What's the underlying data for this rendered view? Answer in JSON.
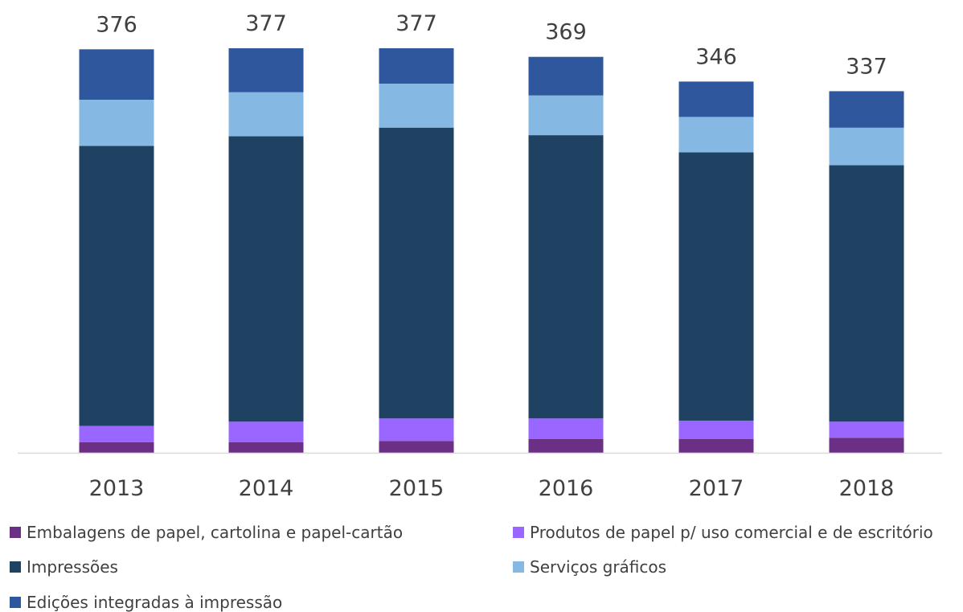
{
  "chart_data": {
    "type": "bar",
    "stacked": true,
    "categories": [
      "2013",
      "2014",
      "2015",
      "2016",
      "2017",
      "2018"
    ],
    "totals": [
      376,
      377,
      377,
      369,
      346,
      337
    ],
    "series": [
      {
        "name": "Embalagens de papel, cartolina e papel-cartão",
        "color": "#6B2F86",
        "values": [
          10,
          10,
          11,
          13,
          13,
          14
        ]
      },
      {
        "name": "Produtos de papel p/ uso comercial e de escritório",
        "color": "#9966FF",
        "values": [
          15,
          19,
          21,
          19,
          17,
          15
        ]
      },
      {
        "name": "Impressões",
        "color": "#1F4263",
        "values": [
          261,
          266,
          271,
          264,
          250,
          239
        ]
      },
      {
        "name": "Serviços gráficos",
        "color": "#85B8E2",
        "values": [
          43,
          41,
          41,
          37,
          33,
          35
        ]
      },
      {
        "name": "Edições integradas à impressão",
        "color": "#2E579E",
        "values": [
          47,
          41,
          33,
          36,
          33,
          34
        ]
      }
    ],
    "ylim": [
      0,
      377
    ],
    "grid": false,
    "legend_position": "bottom"
  }
}
